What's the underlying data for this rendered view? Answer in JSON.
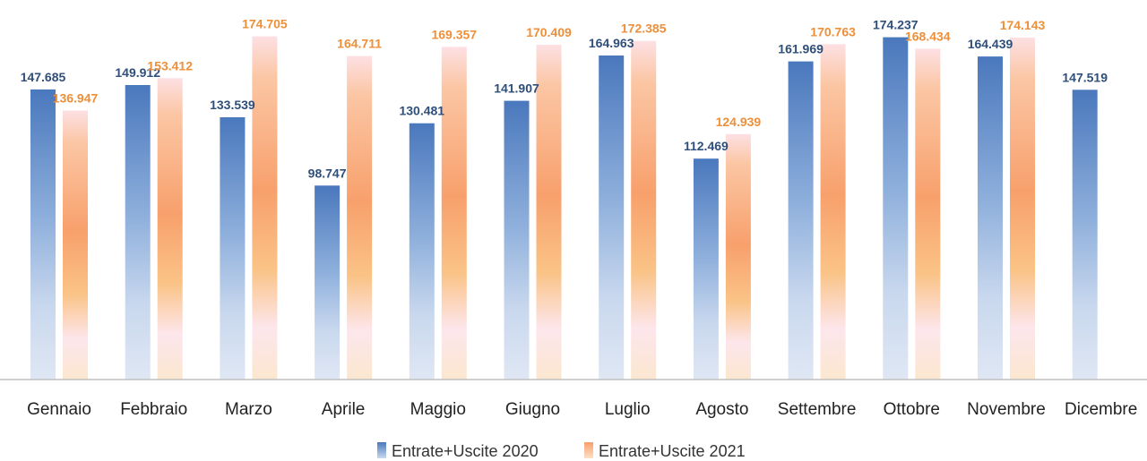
{
  "chart_data": {
    "type": "bar",
    "categories": [
      "Gennaio",
      "Febbraio",
      "Marzo",
      "Aprile",
      "Maggio",
      "Giugno",
      "Luglio",
      "Agosto",
      "Settembre",
      "Ottobre",
      "Novembre",
      "Dicembre"
    ],
    "series": [
      {
        "name": "Entrate+Uscite 2020",
        "values": [
          147.685,
          149.912,
          133.539,
          98.747,
          130.481,
          141.907,
          164.963,
          112.469,
          161.969,
          174.237,
          164.439,
          147.519
        ],
        "labels": [
          "147.685",
          "149.912",
          "133.539",
          "98.747",
          "130.481",
          "141.907",
          "164.963",
          "112.469",
          "161.969",
          "174.237",
          "164.439",
          "147.519"
        ],
        "color": "#4f7ec1",
        "label_color": "#2f4f7a"
      },
      {
        "name": "Entrate+Uscite 2021",
        "values": [
          136.947,
          153.412,
          174.705,
          164.711,
          169.357,
          170.409,
          172.385,
          124.939,
          170.763,
          168.434,
          174.143,
          null
        ],
        "labels": [
          "136.947",
          "153.412",
          "174.705",
          "164.711",
          "169.357",
          "170.409",
          "172.385",
          "124.939",
          "170.763",
          "168.434",
          "174.143",
          null
        ],
        "color": "#f7a35c",
        "label_color": "#ee8f3a"
      }
    ],
    "ylim": [
      0,
      180
    ],
    "grid": false,
    "legend": "bottom-center",
    "title": "",
    "xlabel": "",
    "ylabel": ""
  }
}
